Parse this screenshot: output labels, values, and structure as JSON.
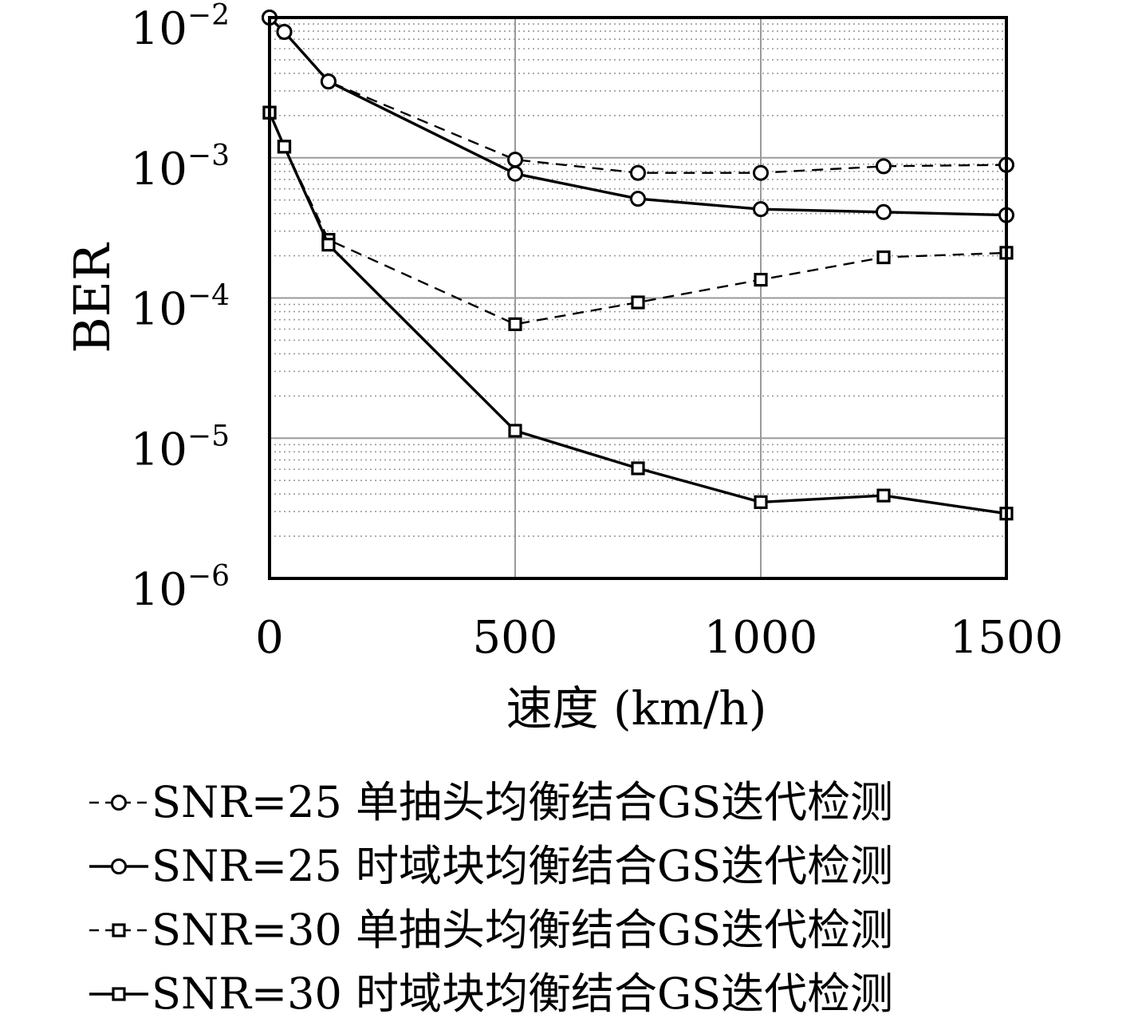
{
  "chart_data": {
    "type": "line",
    "xlabel": "速度 (km/h)",
    "ylabel": "BER",
    "x_scale": "linear",
    "y_scale": "log",
    "xlim": [
      0,
      1500
    ],
    "ylim": [
      1e-06,
      0.01
    ],
    "x_ticks": [
      0,
      500,
      1000,
      1500
    ],
    "x_tick_labels": [
      "0",
      "500",
      "1000",
      "1500"
    ],
    "y_ticks": [
      0.01,
      0.001,
      0.0001,
      1e-05,
      1e-06
    ],
    "y_tick_labels": [
      {
        "base": "10",
        "exp": "−2"
      },
      {
        "base": "10",
        "exp": "−3"
      },
      {
        "base": "10",
        "exp": "−4"
      },
      {
        "base": "10",
        "exp": "−5"
      },
      {
        "base": "10",
        "exp": "−6"
      }
    ],
    "grid": true,
    "legend_position": "bottom",
    "series": [
      {
        "name": "SNR=25 单抽头均衡结合GS迭代检测",
        "line_style": "dashed",
        "marker": "circle",
        "color": "#000000",
        "x": [
          0,
          30,
          120,
          500,
          750,
          1000,
          1250,
          1500
        ],
        "y": [
          0.01,
          0.0079,
          0.0035,
          0.00097,
          0.00078,
          0.00078,
          0.00087,
          0.00089
        ]
      },
      {
        "name": "SNR=25 时域块均衡结合GS迭代检测",
        "line_style": "solid",
        "marker": "circle",
        "color": "#000000",
        "x": [
          0,
          30,
          120,
          500,
          750,
          1000,
          1250,
          1500
        ],
        "y": [
          0.01,
          0.0079,
          0.0035,
          0.00077,
          0.00051,
          0.00043,
          0.00041,
          0.00039
        ]
      },
      {
        "name": "SNR=30 单抽头均衡结合GS迭代检测",
        "line_style": "dashed",
        "marker": "square",
        "color": "#000000",
        "x": [
          0,
          30,
          120,
          500,
          750,
          1000,
          1250,
          1500
        ],
        "y": [
          0.0021,
          0.0012,
          0.00026,
          6.5e-05,
          9.3e-05,
          0.000135,
          0.000195,
          0.00021
        ]
      },
      {
        "name": "SNR=30 时域块均衡结合GS迭代检测",
        "line_style": "solid",
        "marker": "square",
        "color": "#000000",
        "x": [
          0,
          30,
          120,
          500,
          750,
          1000,
          1250,
          1500
        ],
        "y": [
          0.0021,
          0.0012,
          0.00024,
          1.13e-05,
          6.1e-06,
          3.5e-06,
          3.9e-06,
          2.9e-06
        ]
      }
    ]
  }
}
